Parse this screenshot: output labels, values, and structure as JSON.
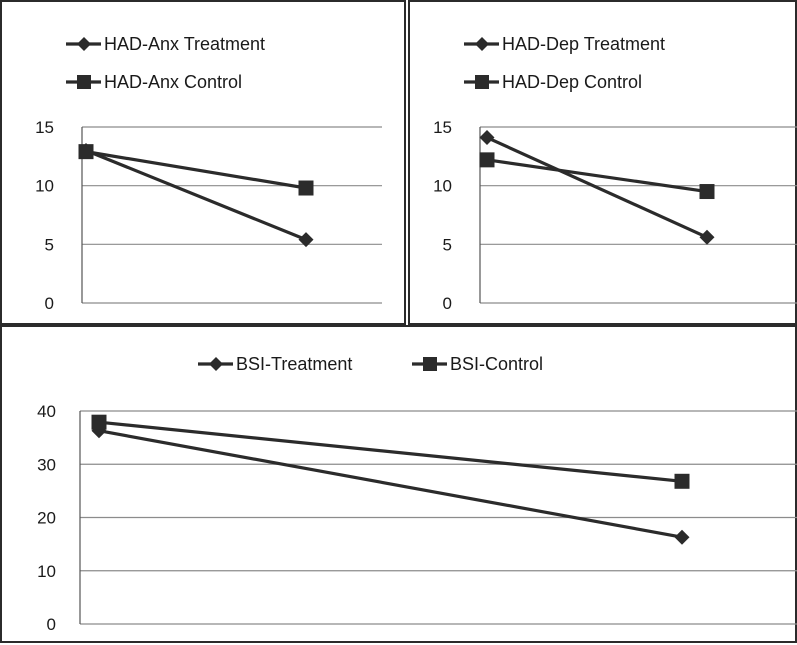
{
  "chart_data": [
    {
      "type": "line",
      "categories": [
        "",
        ""
      ],
      "series": [
        {
          "name": "HAD-Anx Treatment",
          "marker": "diamond",
          "values": [
            13.0,
            5.4
          ]
        },
        {
          "name": "HAD-Anx Control",
          "marker": "square",
          "values": [
            12.9,
            9.8
          ]
        }
      ],
      "ylim": [
        0,
        15
      ],
      "yticks": [
        "0",
        "5",
        "10",
        "15"
      ],
      "grid": true,
      "legend_position": "top"
    },
    {
      "type": "line",
      "categories": [
        "",
        ""
      ],
      "series": [
        {
          "name": "HAD-Dep Treatment",
          "marker": "diamond",
          "values": [
            14.1,
            5.6
          ]
        },
        {
          "name": "HAD-Dep Control",
          "marker": "square",
          "values": [
            12.2,
            9.5
          ]
        }
      ],
      "ylim": [
        0,
        15
      ],
      "yticks": [
        "0",
        "5",
        "10",
        "15"
      ],
      "grid": true,
      "legend_position": "top"
    },
    {
      "type": "line",
      "categories": [
        "",
        ""
      ],
      "series": [
        {
          "name": "BSI-Treatment",
          "marker": "diamond",
          "values": [
            36.3,
            16.3
          ]
        },
        {
          "name": "BSI-Control",
          "marker": "square",
          "values": [
            37.9,
            26.8
          ]
        }
      ],
      "ylim": [
        0,
        40
      ],
      "yticks": [
        "0",
        "10",
        "20",
        "30",
        "40"
      ],
      "grid": true,
      "legend_position": "top"
    }
  ],
  "colors": {
    "line": "#2b2b2b",
    "grid": "#8c8c8c",
    "axis": "#555555"
  }
}
